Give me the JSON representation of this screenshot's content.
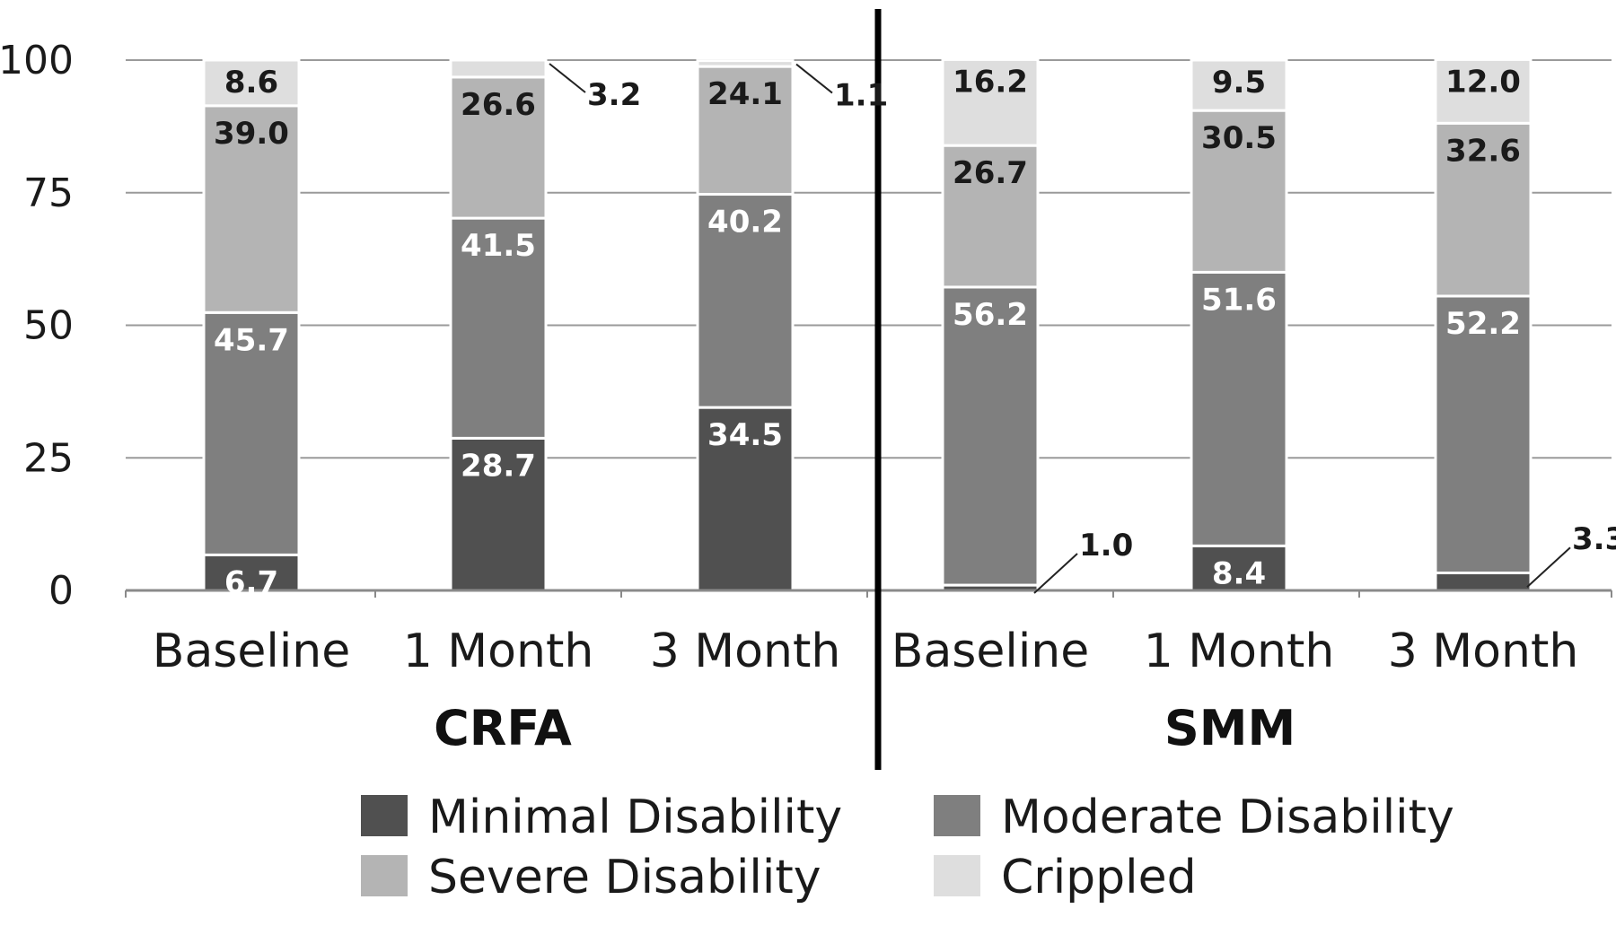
{
  "chart_data": {
    "type": "bar",
    "stacked": true,
    "ylim": [
      0,
      100
    ],
    "yticks": [
      0,
      25,
      50,
      75,
      100
    ],
    "grid": true,
    "legend_position": "bottom",
    "groups": [
      "CRFA",
      "SMM"
    ],
    "categories": [
      "Baseline",
      "1 Month",
      "3 Month",
      "Baseline",
      "1 Month",
      "3 Month"
    ],
    "series": [
      {
        "name": "Minimal Disability",
        "color": "#505050",
        "values": [
          6.7,
          28.7,
          34.5,
          1.0,
          8.4,
          3.3
        ],
        "labels": [
          "6.7",
          "28.7",
          "34.5",
          "1.0",
          "8.4",
          "3.3"
        ]
      },
      {
        "name": "Moderate Disability",
        "color": "#7f7f7f",
        "values": [
          45.7,
          41.5,
          40.2,
          56.2,
          51.6,
          52.2
        ],
        "labels": [
          "45.7",
          "41.5",
          "40.2",
          "56.2",
          "51.6",
          "52.2"
        ]
      },
      {
        "name": "Severe Disability",
        "color": "#b4b4b4",
        "values": [
          39.0,
          26.6,
          24.1,
          26.7,
          30.5,
          32.6
        ],
        "labels": [
          "39.0",
          "26.6",
          "24.1",
          "26.7",
          "30.5",
          "32.6"
        ]
      },
      {
        "name": "Crippled",
        "color": "#dedede",
        "values": [
          8.6,
          3.2,
          1.1,
          16.2,
          9.5,
          12.0
        ],
        "labels": [
          "8.6",
          "3.2",
          "1.1",
          "16.2",
          "9.5",
          "12.0"
        ]
      }
    ]
  }
}
